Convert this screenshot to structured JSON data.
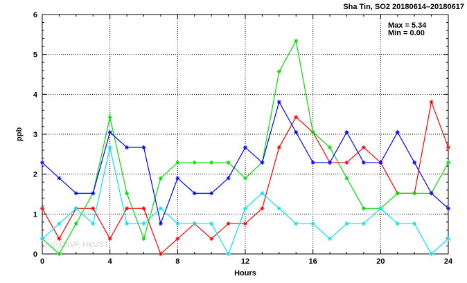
{
  "chart_data": {
    "type": "line",
    "title": "Sha Tin, SO2 20180614–20180617",
    "xlabel": "Hours",
    "ylabel": "ppb",
    "xlim": [
      0,
      24
    ],
    "ylim": [
      0,
      6
    ],
    "xticks": [
      0,
      4,
      8,
      12,
      16,
      20,
      24
    ],
    "yticks": [
      0,
      1,
      2,
      3,
      4,
      5,
      6
    ],
    "grid": true,
    "stats": {
      "max_label": "Max = 5.34",
      "min_label": "Min = 0.00"
    },
    "watermark": "© ENVF, HKUST",
    "x": [
      0,
      1,
      2,
      3,
      4,
      5,
      6,
      7,
      8,
      9,
      10,
      11,
      12,
      13,
      14,
      15,
      16,
      17,
      18,
      19,
      20,
      21,
      22,
      23,
      24
    ],
    "series": [
      {
        "color": "#ff0000",
        "values": [
          1.14,
          0.38,
          1.14,
          1.14,
          0.38,
          1.14,
          1.14,
          0.0,
          0.38,
          0.76,
          0.38,
          0.76,
          0.76,
          1.14,
          2.67,
          3.43,
          3.05,
          2.29,
          2.29,
          2.67,
          2.29,
          1.52,
          1.52,
          3.81,
          2.67
        ]
      },
      {
        "color": "#00dd00",
        "values": [
          0.38,
          0.0,
          0.76,
          1.52,
          3.43,
          1.52,
          0.38,
          1.9,
          2.29,
          2.29,
          2.29,
          2.29,
          1.9,
          2.29,
          4.57,
          5.34,
          3.05,
          2.67,
          1.9,
          1.14,
          1.14,
          1.52,
          1.52,
          1.52,
          2.29
        ]
      },
      {
        "color": "#0000ff",
        "values": [
          2.29,
          1.9,
          1.52,
          1.52,
          3.05,
          2.67,
          2.67,
          0.76,
          1.9,
          1.52,
          1.52,
          1.9,
          2.67,
          2.29,
          3.81,
          3.05,
          2.29,
          2.29,
          3.05,
          2.29,
          2.29,
          3.05,
          2.29,
          1.52,
          1.14
        ]
      },
      {
        "color": "#00e5ee",
        "values": [
          0.38,
          0.76,
          1.14,
          0.76,
          2.67,
          0.76,
          0.76,
          1.14,
          0.76,
          0.76,
          0.76,
          0.0,
          1.14,
          1.52,
          1.14,
          0.76,
          0.76,
          0.38,
          0.76,
          0.76,
          1.14,
          0.76,
          0.76,
          0.0,
          0.38
        ]
      }
    ]
  }
}
